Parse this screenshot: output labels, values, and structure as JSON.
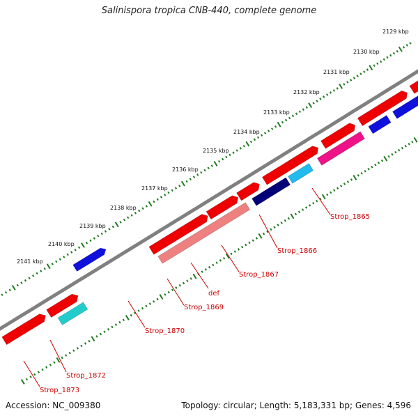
{
  "title": "Salinispora tropica CNB-440, complete genome",
  "footer": {
    "accession": "Accession: NC_009380",
    "summary": "Topology: circular; Length: 5,183,331 bp; Genes: 4,596"
  },
  "colors": {
    "backbone": "#808080",
    "tick": "#1f7a1f",
    "label": "#cc0000",
    "red": "#ee0000",
    "blue": "#1010dd",
    "navy": "#000077",
    "cyan": "#22bbee",
    "magenta": "#ee1188",
    "salmon": "#ee8080",
    "orange": "#ff9900",
    "teal": "#22cccc"
  },
  "scale": {
    "ticks": [
      {
        "label": "2129 kbp"
      },
      {
        "label": "2130 kbp"
      },
      {
        "label": "2131 kbp"
      },
      {
        "label": "2132 kbp"
      },
      {
        "label": "2133 kbp"
      },
      {
        "label": "2134 kbp"
      },
      {
        "label": "2135 kbp"
      },
      {
        "label": "2136 kbp"
      },
      {
        "label": "2137 kbp"
      },
      {
        "label": "2138 kbp"
      },
      {
        "label": "2139 kbp"
      },
      {
        "label": "2140 kbp"
      },
      {
        "label": "2141 kbp"
      }
    ]
  },
  "genes": [
    {
      "name": "Strop_1865",
      "color": "magenta"
    },
    {
      "name": "Strop_1866",
      "color": "cyan"
    },
    {
      "name": "Strop_1867",
      "color": "navy"
    },
    {
      "name": "def",
      "color": "salmon"
    },
    {
      "name": "Strop_1869",
      "color": "salmon"
    },
    {
      "name": "Strop_1870",
      "color": "salmon"
    },
    {
      "name": "Strop_1872",
      "color": "teal"
    },
    {
      "name": "Strop_1873",
      "color": "red"
    }
  ]
}
